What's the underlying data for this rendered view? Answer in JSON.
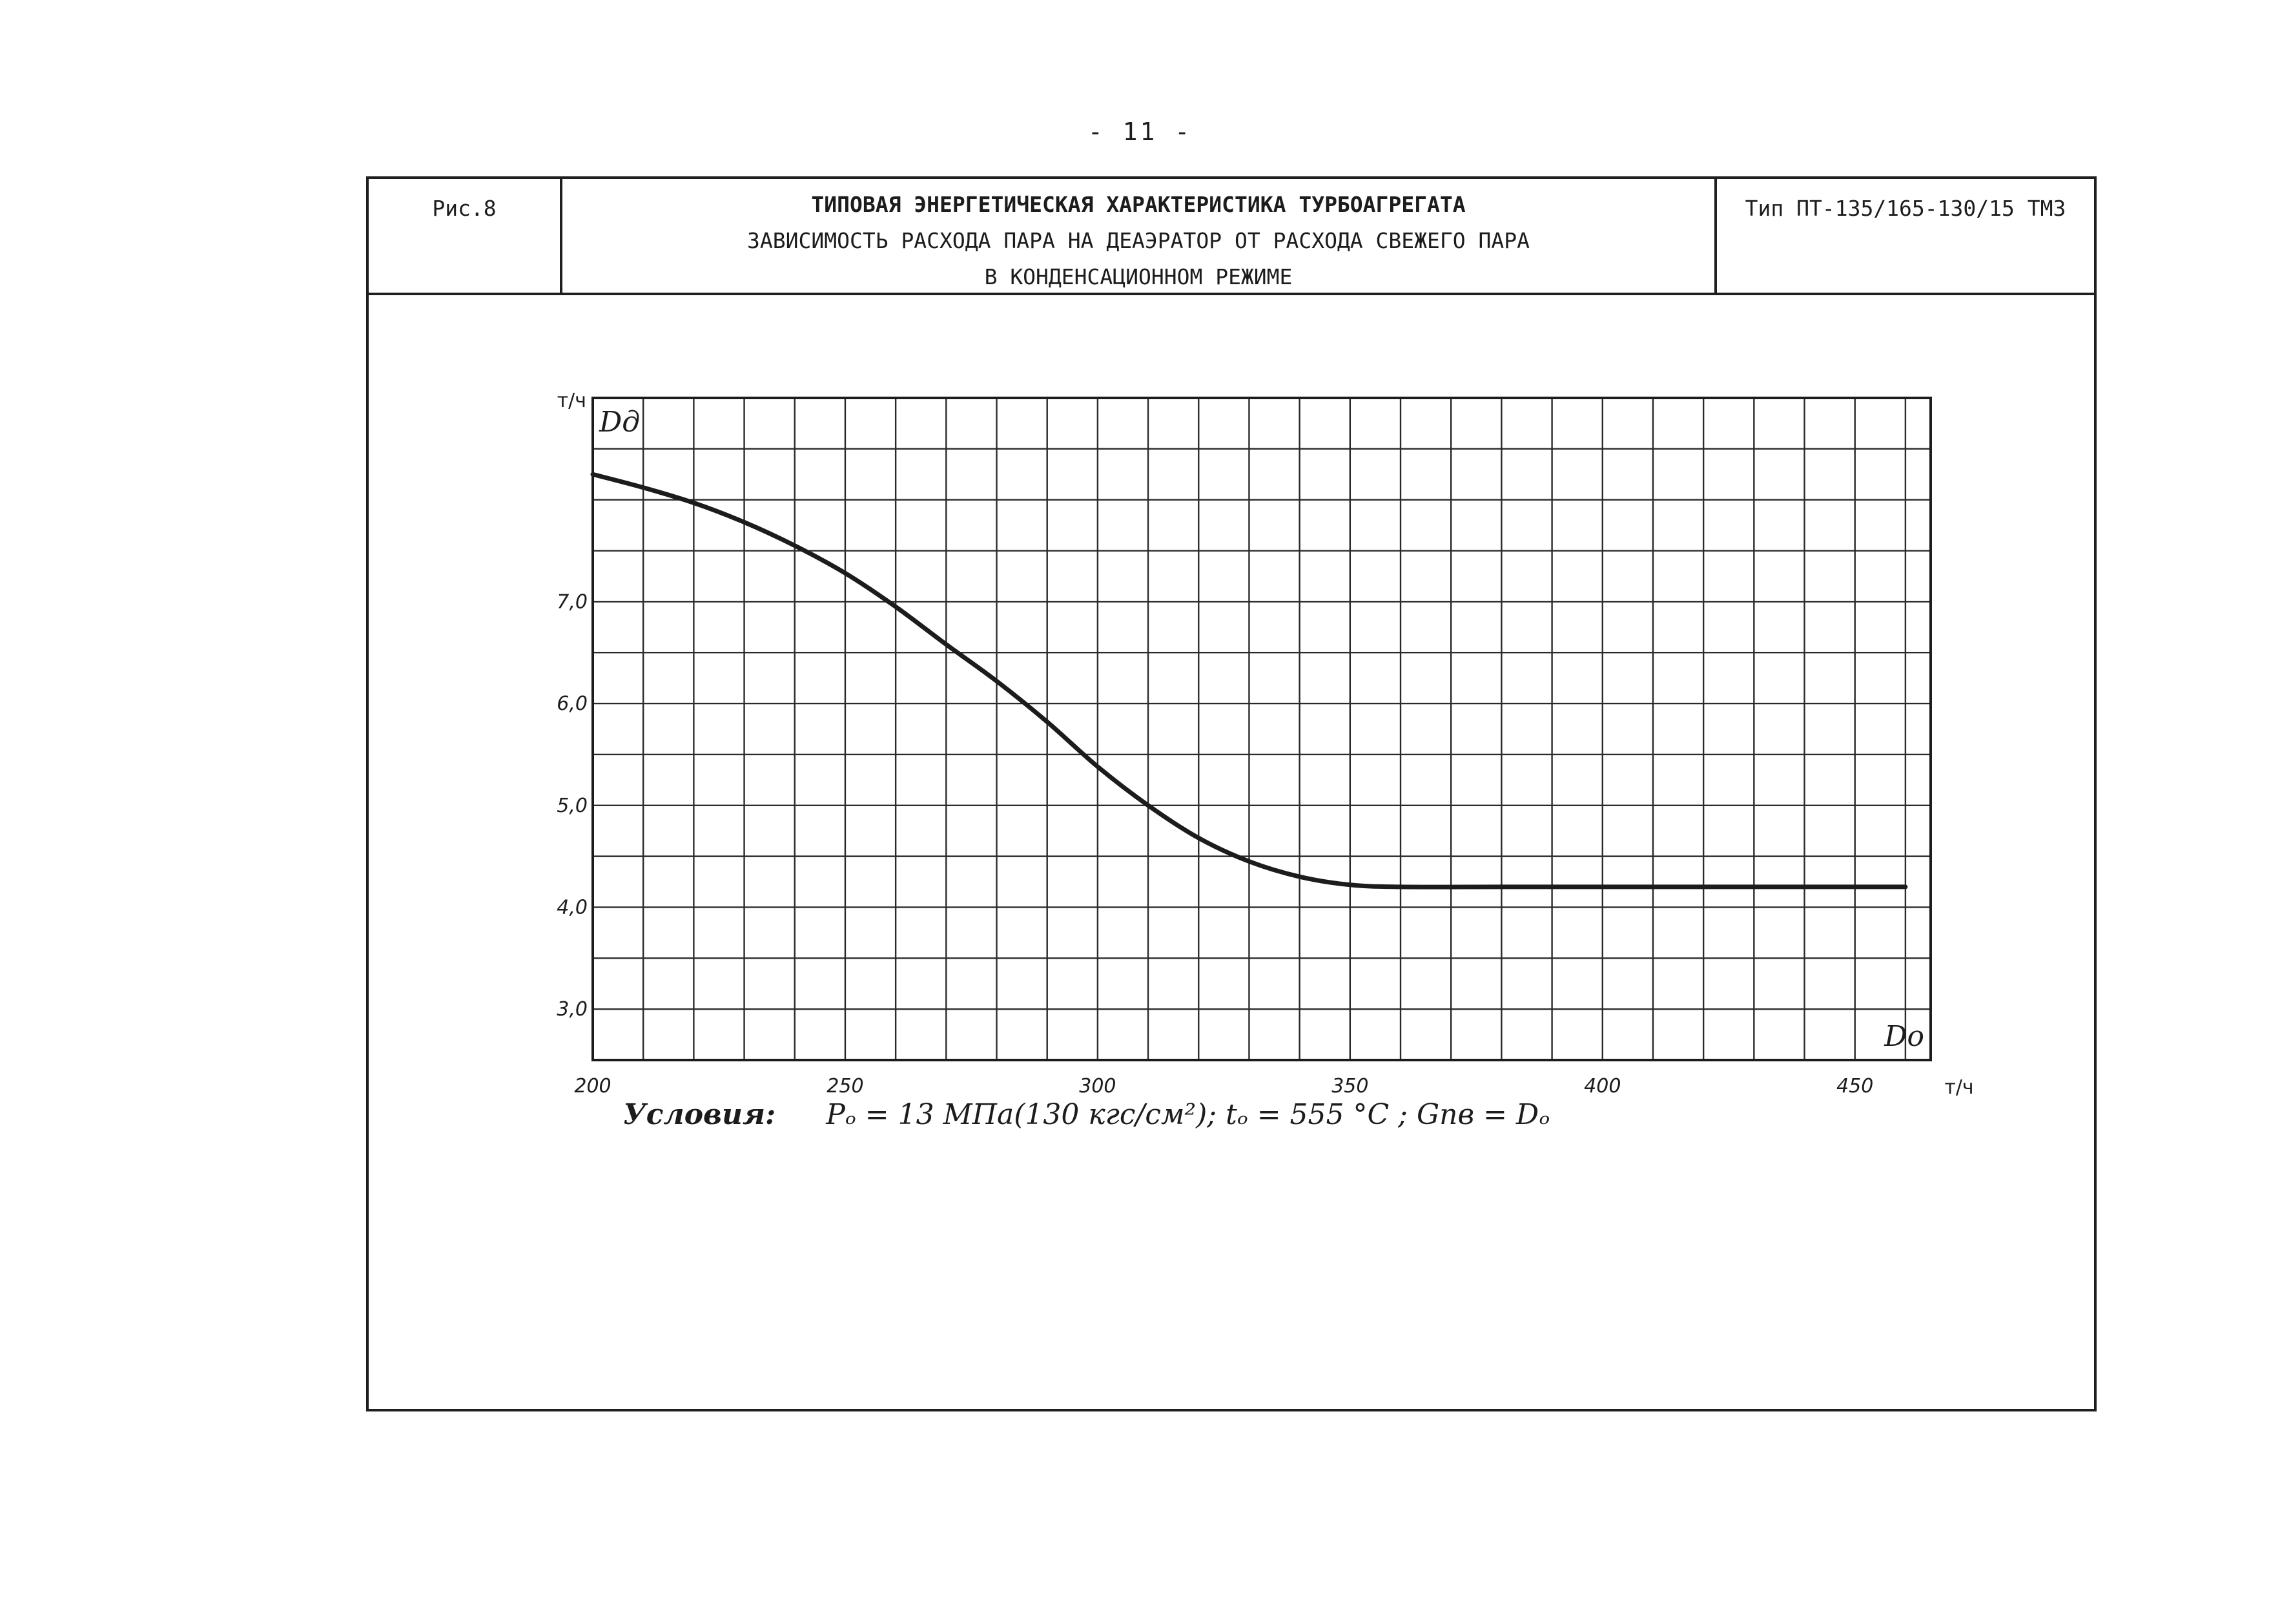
{
  "page_number": "- 11 -",
  "title_block": {
    "figure_label": "Рис.8",
    "title_line1": "ТИПОВАЯ ЭНЕРГЕТИЧЕСКАЯ ХАРАКТЕРИСТИКА ТУРБОАГРЕГАТА",
    "title_line2": "ЗАВИСИМОСТЬ РАСХОДА ПАРА НА ДЕАЭРАТОР ОТ РАСХОДА СВЕЖЕГО ПАРА",
    "title_line3": "В КОНДЕНСАЦИОННОМ РЕЖИМЕ",
    "turbine_type": "Тип ПТ-135/165-130/15 ТМЗ"
  },
  "conditions": {
    "label": "Условия:",
    "text": "Pₒ = 13 МПа(130 кгс/см²); tₒ = 555 °C ; Gпв = Dₒ"
  },
  "colors": {
    "ink": "#1c1c1c",
    "grid": "#2a2a2a",
    "paper": "#ffffff"
  },
  "chart_data": {
    "type": "line",
    "title": "",
    "xlabel": "Dо",
    "ylabel": "Dд",
    "x_unit": "т/ч",
    "y_unit": "т/ч",
    "xlim": [
      200,
      465
    ],
    "ylim": [
      2.5,
      9.0
    ],
    "x_tick_values": [
      200,
      250,
      300,
      350,
      400,
      450
    ],
    "x_tick_labels": [
      "200",
      "250",
      "300",
      "350",
      "400",
      "450"
    ],
    "y_tick_values": [
      3,
      4,
      5,
      6,
      7
    ],
    "y_tick_labels": [
      "3,0",
      "4,0",
      "5,0",
      "6,0",
      "7,0"
    ],
    "grid": true,
    "legend": "none",
    "series": [
      {
        "x": [
          200,
          210,
          220,
          230,
          240,
          250,
          260,
          270,
          280,
          290,
          300,
          310,
          320,
          330,
          340,
          350,
          360,
          380,
          400,
          420,
          440,
          460
        ],
        "y": [
          8.25,
          8.12,
          7.97,
          7.78,
          7.55,
          7.28,
          6.95,
          6.58,
          6.22,
          5.82,
          5.38,
          5.0,
          4.68,
          4.45,
          4.3,
          4.22,
          4.2,
          4.2,
          4.2,
          4.2,
          4.2,
          4.2
        ]
      }
    ]
  }
}
